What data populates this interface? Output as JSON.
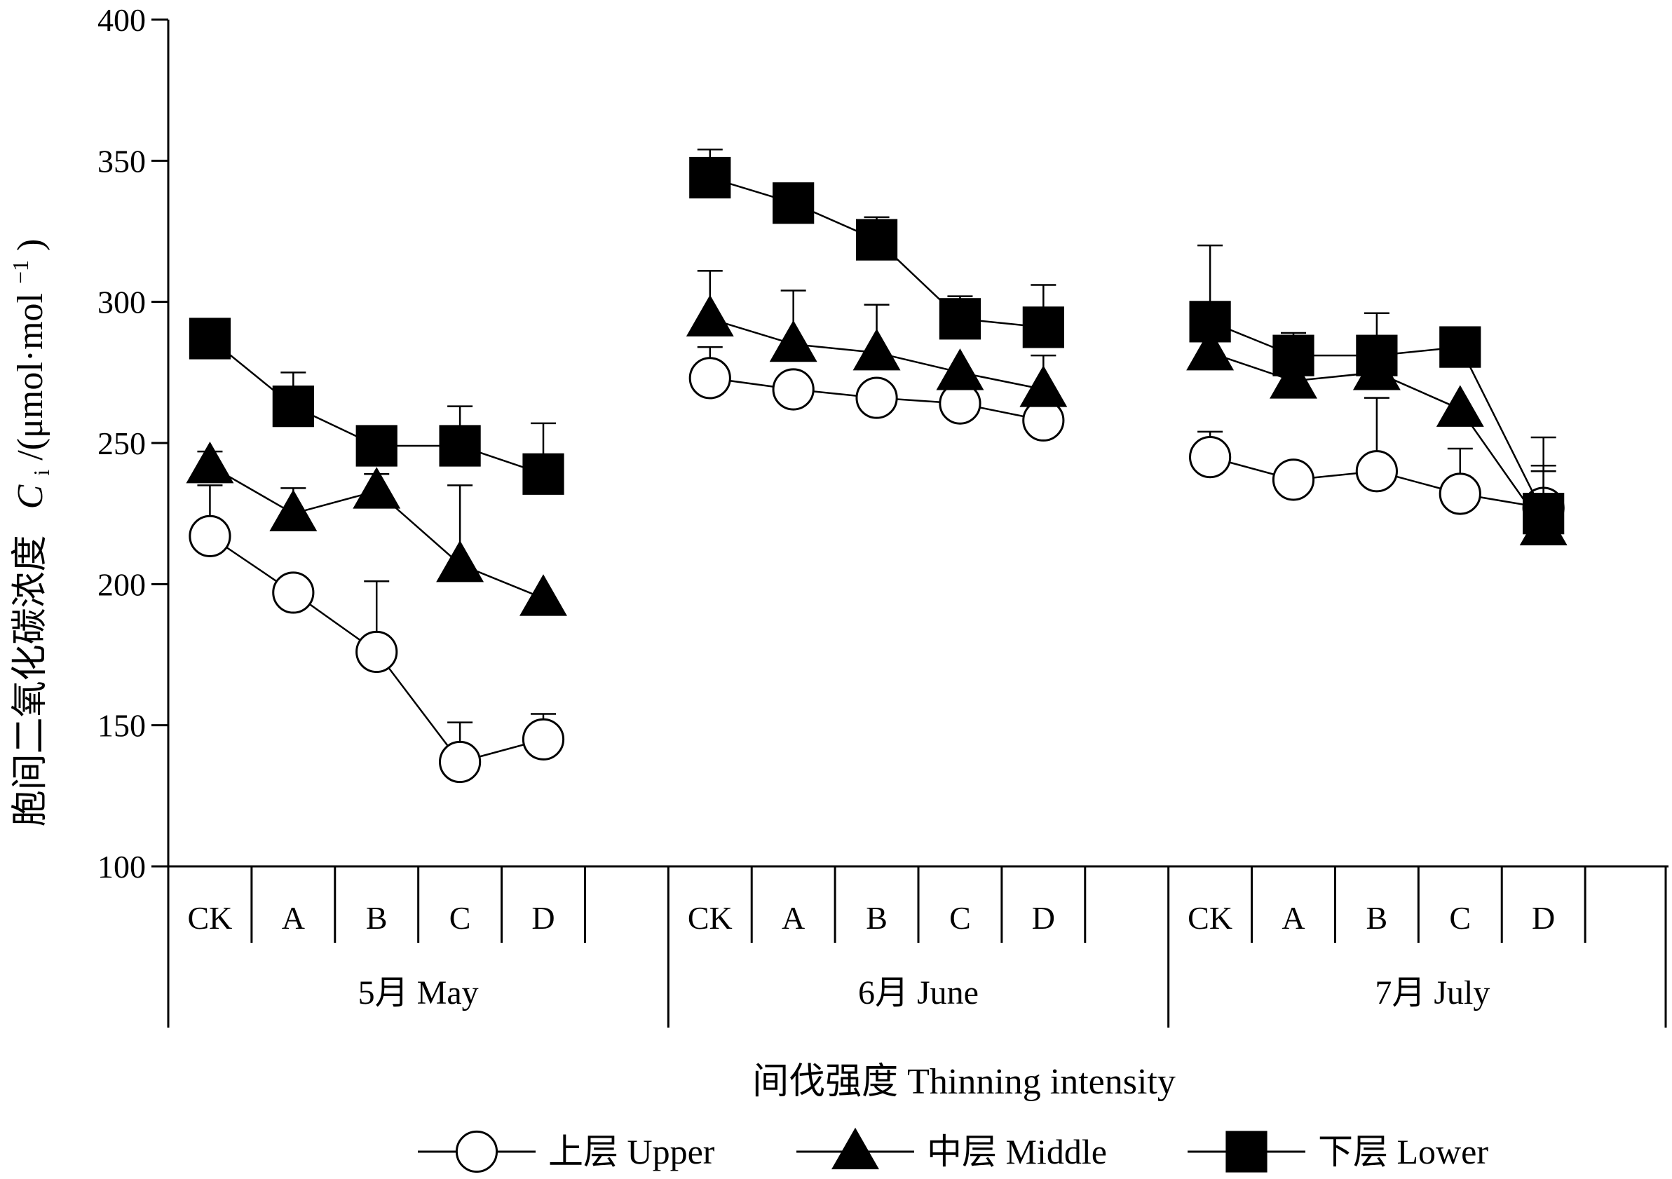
{
  "chart_data": {
    "type": "line",
    "ylabel_prefix": "胞间二氧化碳浓度",
    "ylabel_symbol": "C",
    "ylabel_subscript": "i",
    "ylabel_unit_open": "/(μmol·mol",
    "ylabel_unit_sup": "−1",
    "ylabel_unit_close": ")",
    "xlabel": "间伐强度  Thinning  intensity",
    "ylim": [
      100,
      400
    ],
    "yticks": [
      100,
      150,
      200,
      250,
      300,
      350,
      400
    ],
    "ytick_labels": [
      "100",
      "150",
      "200",
      "250",
      "300",
      "350",
      "400"
    ],
    "categories": [
      "CK",
      "A",
      "B",
      "C",
      "D"
    ],
    "groups": [
      {
        "label": "5月  May"
      },
      {
        "label": "6月  June"
      },
      {
        "label": "7月  July"
      }
    ],
    "series": [
      {
        "name": "上层  Upper",
        "marker": "circle-open",
        "values": [
          [
            217,
            197,
            176,
            137,
            145
          ],
          [
            273,
            269,
            266,
            264,
            258
          ],
          [
            245,
            237,
            240,
            232,
            227
          ]
        ],
        "errors": [
          [
            18,
            0,
            25,
            14,
            9
          ],
          [
            11,
            3,
            4,
            0,
            0
          ],
          [
            9,
            0,
            26,
            16,
            15
          ]
        ]
      },
      {
        "name": "中层  Middle",
        "marker": "triangle",
        "values": [
          [
            242,
            225,
            233,
            207,
            195
          ],
          [
            294,
            285,
            282,
            275,
            269
          ],
          [
            282,
            272,
            275,
            262,
            220
          ]
        ],
        "errors": [
          [
            5,
            9,
            6,
            28,
            0
          ],
          [
            17,
            19,
            17,
            0,
            12
          ],
          [
            0,
            0,
            11,
            0,
            20
          ]
        ]
      },
      {
        "name": "下层  Lower",
        "marker": "square",
        "values": [
          [
            287,
            263,
            249,
            249,
            239
          ],
          [
            344,
            335,
            322,
            294,
            291
          ],
          [
            293,
            281,
            281,
            284,
            225
          ]
        ],
        "errors": [
          [
            4,
            12,
            0,
            14,
            18
          ],
          [
            10,
            5,
            8,
            8,
            15
          ],
          [
            27,
            8,
            15,
            6,
            27
          ]
        ]
      }
    ],
    "colors": {
      "line": "#000000",
      "marker_fill": "#000000",
      "open_marker_fill": "#ffffff"
    },
    "legend_position": "bottom"
  }
}
